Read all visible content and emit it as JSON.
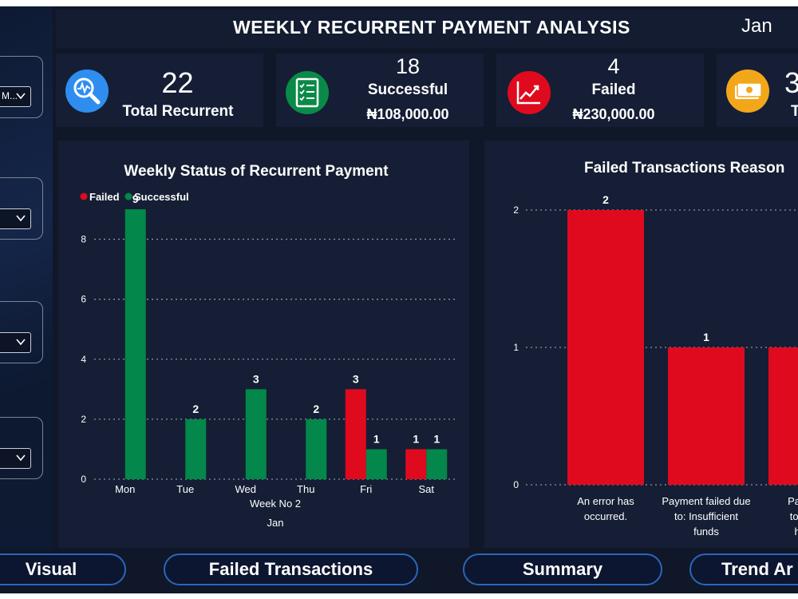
{
  "header": {
    "title": "WEEKLY RECURRENT PAYMENT ANALYSIS",
    "month": "Jan"
  },
  "slicers": [
    {
      "value": "M..."
    },
    {
      "value": ""
    },
    {
      "value": ""
    },
    {
      "value": ""
    }
  ],
  "kpis": {
    "total": {
      "value": "22",
      "label": "Total Recurrent",
      "icon": "search-analytics-icon",
      "color": "#2f8df0"
    },
    "successful": {
      "value": "18",
      "label": "Successful",
      "amount": "₦108,000.00",
      "icon": "checklist-icon",
      "color": "#0a8a48"
    },
    "failed": {
      "value": "4",
      "label": "Failed",
      "amount": "₦230,000.00",
      "icon": "chart-decline-icon",
      "color": "#e00a1e"
    },
    "fourth": {
      "value": "3",
      "label": "T",
      "icon": "money-icon",
      "color": "#f2a71b"
    }
  },
  "chart_data": [
    {
      "type": "bar",
      "title": "Weekly Status of Recurrent Payment",
      "categories": [
        "Mon",
        "Tue",
        "Wed",
        "Thu",
        "Fri",
        "Sat"
      ],
      "series": [
        {
          "name": "Failed",
          "color": "#e00a1e",
          "values": [
            null,
            null,
            null,
            null,
            3,
            1
          ]
        },
        {
          "name": "Successful",
          "color": "#03874a",
          "values": [
            9,
            2,
            3,
            2,
            1,
            1
          ]
        }
      ],
      "xlabel": "Week No 2",
      "xsublabel": "Jan",
      "ylim": [
        0,
        9
      ],
      "yticks": [
        0,
        2,
        4,
        6,
        8
      ],
      "grid": true,
      "legend": "top-left"
    },
    {
      "type": "bar",
      "title": "Failed Transactions Reason",
      "categories": [
        [
          "An error has",
          "occurred."
        ],
        [
          "Payment failed due",
          "to: Insufficient",
          "funds"
        ],
        [
          "Paymen",
          "to: This",
          "has c"
        ]
      ],
      "values": [
        2,
        1,
        1
      ],
      "color": "#e00a1e",
      "ylim": [
        0,
        2
      ],
      "yticks": [
        0,
        1,
        2
      ],
      "grid": true
    }
  ],
  "nav": {
    "visual": "Visual",
    "failed": "Failed Transactions",
    "summary": "Summary",
    "trend": "Trend Ar"
  }
}
